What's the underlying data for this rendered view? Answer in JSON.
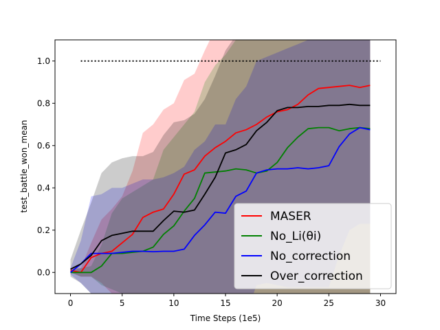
{
  "chart_data": {
    "type": "line",
    "title": "",
    "xlabel": "Time Steps (1e5)",
    "ylabel": "test_battle_won_mean",
    "xlim": [
      -1.5,
      31.5
    ],
    "ylim": [
      -0.1,
      1.1
    ],
    "xticks": [
      0,
      5,
      10,
      15,
      20,
      25,
      30
    ],
    "yticks": [
      0.0,
      0.2,
      0.4,
      0.6,
      0.8,
      1.0
    ],
    "xtick_labels": [
      "0",
      "5",
      "10",
      "15",
      "20",
      "25",
      "30"
    ],
    "ytick_labels": [
      "0.0",
      "0.2",
      "0.4",
      "0.6",
      "0.8",
      "1.0"
    ],
    "legend_position": "lower-right",
    "reference_line": {
      "y": 1.0,
      "x": [
        1,
        30
      ],
      "color": "#000000",
      "style": "dotted"
    },
    "x": [
      0,
      1,
      2,
      3,
      4,
      5,
      6,
      7,
      8,
      9,
      10,
      11,
      12,
      13,
      14,
      15,
      16,
      17,
      18,
      19,
      20,
      21,
      22,
      23,
      24,
      25,
      26,
      27,
      28,
      29
    ],
    "series": [
      {
        "name": "MASER",
        "color": "#ff0000",
        "values": [
          0.01,
          0.0,
          0.07,
          0.09,
          0.1,
          0.14,
          0.18,
          0.26,
          0.285,
          0.3,
          0.37,
          0.465,
          0.485,
          0.55,
          0.59,
          0.62,
          0.66,
          0.675,
          0.7,
          0.735,
          0.76,
          0.77,
          0.795,
          0.84,
          0.87,
          0.875,
          0.88,
          0.885,
          0.875,
          0.885
        ],
        "upper": [
          0.02,
          0.02,
          0.14,
          0.25,
          0.3,
          0.36,
          0.48,
          0.66,
          0.7,
          0.77,
          0.8,
          0.91,
          0.94,
          1.05,
          1.15,
          1.2,
          1.25,
          1.3,
          1.3,
          1.3,
          1.3,
          1.3,
          1.3,
          1.3,
          1.3,
          1.3,
          1.3,
          1.3,
          1.3,
          1.3
        ],
        "lower": [
          0.0,
          -0.02,
          -0.02,
          -0.05,
          -0.1,
          -0.2,
          -0.2,
          -0.2,
          -0.2,
          -0.2,
          -0.2,
          -0.2,
          -0.2,
          -0.2,
          -0.2,
          -0.2,
          -0.2,
          -0.2,
          -0.2,
          -0.2,
          -0.2,
          -0.2,
          -0.2,
          -0.2,
          -0.2,
          -0.2,
          -0.2,
          -0.2,
          -0.2,
          -0.2
        ]
      },
      {
        "name": "No_Li(θi)",
        "color": "#008000",
        "values": [
          0.0,
          0.0,
          0.0,
          0.03,
          0.09,
          0.09,
          0.095,
          0.1,
          0.12,
          0.18,
          0.22,
          0.29,
          0.35,
          0.47,
          0.475,
          0.48,
          0.49,
          0.485,
          0.47,
          0.48,
          0.52,
          0.59,
          0.64,
          0.68,
          0.685,
          0.685,
          0.67,
          0.68,
          0.685,
          0.68
        ],
        "upper": [
          0.01,
          0.02,
          0.03,
          0.13,
          0.28,
          0.35,
          0.38,
          0.41,
          0.44,
          0.58,
          0.64,
          0.7,
          0.76,
          0.9,
          0.98,
          1.03,
          1.1,
          1.15,
          1.2,
          1.25,
          1.3,
          1.3,
          1.3,
          1.3,
          1.3,
          1.3,
          1.3,
          1.3,
          1.3,
          1.3
        ],
        "lower": [
          0.0,
          -0.02,
          -0.02,
          -0.06,
          -0.08,
          -0.1,
          -0.12,
          -0.14,
          -0.2,
          -0.2,
          -0.2,
          -0.2,
          -0.2,
          -0.2,
          -0.2,
          -0.2,
          -0.2,
          -0.2,
          -0.2,
          -0.2,
          -0.2,
          -0.2,
          -0.2,
          -0.2,
          -0.2,
          -0.2,
          -0.2,
          -0.2,
          -0.2,
          -0.2
        ]
      },
      {
        "name": "No_correction",
        "color": "#0000ff",
        "values": [
          0.0,
          0.04,
          0.09,
          0.09,
          0.09,
          0.095,
          0.1,
          0.1,
          0.098,
          0.1,
          0.1,
          0.11,
          0.175,
          0.225,
          0.285,
          0.28,
          0.36,
          0.385,
          0.47,
          0.485,
          0.49,
          0.49,
          0.495,
          0.49,
          0.495,
          0.505,
          0.595,
          0.655,
          0.685,
          0.675
        ],
        "upper": [
          0.02,
          0.15,
          0.36,
          0.37,
          0.4,
          0.4,
          0.42,
          0.44,
          0.44,
          0.45,
          0.47,
          0.5,
          0.58,
          0.62,
          0.7,
          0.7,
          0.82,
          0.88,
          1.0,
          1.02,
          1.04,
          1.06,
          1.08,
          1.1,
          1.1,
          1.1,
          1.1,
          1.1,
          1.1,
          1.1
        ],
        "lower": [
          -0.01,
          -0.05,
          -0.1,
          -0.15,
          -0.2,
          -0.2,
          -0.2,
          -0.2,
          -0.2,
          -0.2,
          -0.2,
          -0.2,
          -0.2,
          -0.2,
          -0.2,
          -0.2,
          -0.2,
          -0.2,
          -0.06,
          -0.05,
          -0.06,
          -0.07,
          -0.07,
          -0.07,
          -0.07,
          -0.07,
          0.08,
          0.2,
          0.23,
          0.23
        ]
      },
      {
        "name": "Over_correction",
        "color": "#000000",
        "values": [
          0.015,
          0.04,
          0.08,
          0.15,
          0.175,
          0.185,
          0.195,
          0.195,
          0.195,
          0.245,
          0.29,
          0.285,
          0.295,
          0.37,
          0.45,
          0.565,
          0.58,
          0.605,
          0.67,
          0.71,
          0.765,
          0.78,
          0.78,
          0.785,
          0.785,
          0.79,
          0.79,
          0.795,
          0.79,
          0.79
        ],
        "upper": [
          0.06,
          0.2,
          0.33,
          0.47,
          0.52,
          0.54,
          0.55,
          0.55,
          0.57,
          0.65,
          0.71,
          0.72,
          0.75,
          0.82,
          0.93,
          1.05,
          1.12,
          1.1,
          1.12,
          1.15,
          1.2,
          1.2,
          1.2,
          1.2,
          1.2,
          1.2,
          1.2,
          1.2,
          1.2,
          1.2
        ],
        "lower": [
          -0.02,
          -0.05,
          -0.1,
          -0.2,
          -0.2,
          -0.2,
          -0.2,
          -0.2,
          -0.2,
          -0.2,
          -0.2,
          -0.2,
          -0.2,
          -0.2,
          -0.2,
          -0.2,
          -0.2,
          -0.2,
          -0.2,
          -0.2,
          -0.2,
          -0.2,
          -0.2,
          -0.2,
          -0.2,
          -0.2,
          -0.2,
          -0.2,
          -0.2,
          -0.2
        ]
      }
    ]
  }
}
